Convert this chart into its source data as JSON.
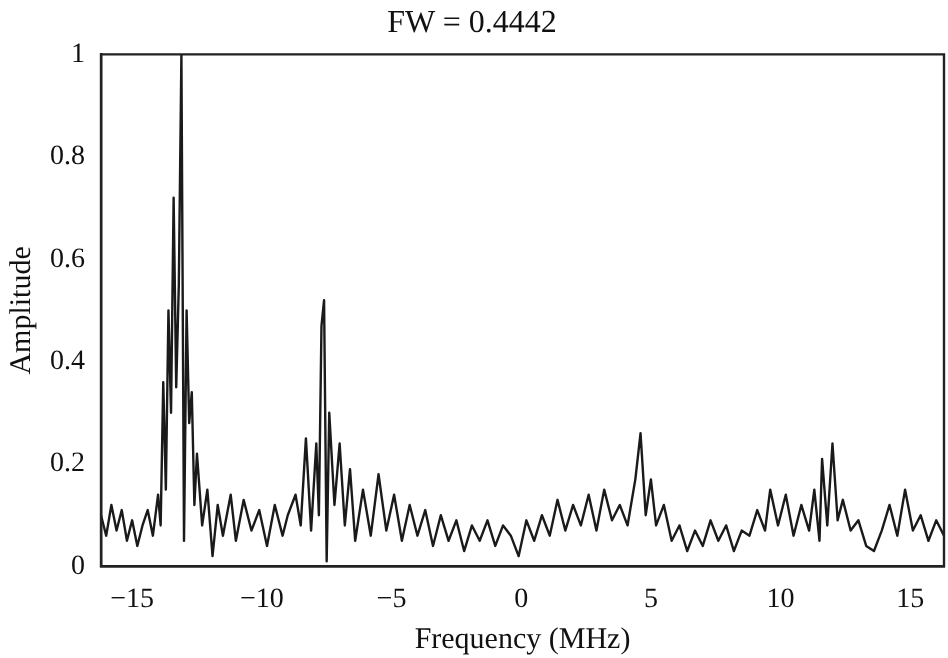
{
  "chart_data": {
    "type": "line",
    "title": "FW = 0.4442",
    "xlabel": "Frequency (MHz)",
    "ylabel": "Amplitude",
    "x": [
      -16.2,
      -16.0,
      -15.8,
      -15.6,
      -15.4,
      -15.2,
      -15.0,
      -14.8,
      -14.6,
      -14.4,
      -14.2,
      -14.0,
      -13.9,
      -13.8,
      -13.7,
      -13.6,
      -13.5,
      -13.4,
      -13.3,
      -13.2,
      -13.1,
      -13.0,
      -12.9,
      -12.8,
      -12.7,
      -12.6,
      -12.5,
      -12.3,
      -12.1,
      -11.9,
      -11.7,
      -11.5,
      -11.2,
      -11.0,
      -10.7,
      -10.4,
      -10.1,
      -9.8,
      -9.5,
      -9.2,
      -9.0,
      -8.7,
      -8.5,
      -8.3,
      -8.1,
      -7.9,
      -7.8,
      -7.7,
      -7.6,
      -7.5,
      -7.4,
      -7.2,
      -7.0,
      -6.8,
      -6.6,
      -6.4,
      -6.1,
      -5.8,
      -5.5,
      -5.2,
      -4.9,
      -4.6,
      -4.3,
      -4.0,
      -3.7,
      -3.4,
      -3.1,
      -2.8,
      -2.5,
      -2.2,
      -1.9,
      -1.6,
      -1.3,
      -1.0,
      -0.7,
      -0.4,
      -0.1,
      0.2,
      0.5,
      0.8,
      1.1,
      1.4,
      1.7,
      2.0,
      2.3,
      2.6,
      2.9,
      3.2,
      3.5,
      3.8,
      4.1,
      4.4,
      4.6,
      4.8,
      5.0,
      5.2,
      5.5,
      5.8,
      6.1,
      6.4,
      6.7,
      7.0,
      7.3,
      7.6,
      7.9,
      8.2,
      8.5,
      8.8,
      9.1,
      9.4,
      9.6,
      9.9,
      10.2,
      10.5,
      10.8,
      11.1,
      11.3,
      11.5,
      11.6,
      11.8,
      12.0,
      12.2,
      12.4,
      12.7,
      13.0,
      13.3,
      13.6,
      13.9,
      14.2,
      14.5,
      14.8,
      15.1,
      15.4,
      15.7,
      16.0,
      16.3
    ],
    "series": [
      {
        "color": "#1a1a1a",
        "values": [
          0.1,
          0.06,
          0.12,
          0.07,
          0.11,
          0.05,
          0.09,
          0.04,
          0.08,
          0.11,
          0.06,
          0.14,
          0.08,
          0.36,
          0.15,
          0.5,
          0.3,
          0.72,
          0.35,
          0.55,
          1.0,
          0.05,
          0.5,
          0.28,
          0.34,
          0.12,
          0.22,
          0.08,
          0.15,
          0.02,
          0.12,
          0.06,
          0.14,
          0.05,
          0.13,
          0.07,
          0.11,
          0.04,
          0.12,
          0.06,
          0.1,
          0.14,
          0.08,
          0.25,
          0.07,
          0.24,
          0.1,
          0.47,
          0.52,
          0.01,
          0.3,
          0.12,
          0.24,
          0.08,
          0.19,
          0.05,
          0.15,
          0.06,
          0.18,
          0.07,
          0.14,
          0.05,
          0.12,
          0.06,
          0.11,
          0.04,
          0.1,
          0.05,
          0.09,
          0.03,
          0.08,
          0.05,
          0.09,
          0.04,
          0.08,
          0.06,
          0.02,
          0.09,
          0.05,
          0.1,
          0.06,
          0.13,
          0.07,
          0.12,
          0.08,
          0.14,
          0.07,
          0.15,
          0.09,
          0.12,
          0.08,
          0.17,
          0.26,
          0.1,
          0.17,
          0.08,
          0.12,
          0.05,
          0.08,
          0.03,
          0.07,
          0.04,
          0.09,
          0.05,
          0.08,
          0.03,
          0.07,
          0.06,
          0.11,
          0.07,
          0.15,
          0.08,
          0.14,
          0.06,
          0.12,
          0.07,
          0.15,
          0.05,
          0.21,
          0.08,
          0.24,
          0.09,
          0.13,
          0.07,
          0.09,
          0.04,
          0.03,
          0.07,
          0.12,
          0.06,
          0.15,
          0.07,
          0.1,
          0.05,
          0.09,
          0.06
        ]
      }
    ],
    "xlim": [
      -16.2,
      16.3
    ],
    "ylim": [
      0,
      1
    ],
    "xticks": [
      -15,
      -10,
      -5,
      0,
      5,
      10,
      15
    ],
    "yticks": [
      0,
      0.2,
      0.4,
      0.6,
      0.8,
      1
    ],
    "grid": false,
    "legend": false,
    "marker": "none",
    "line_style": "solid"
  }
}
